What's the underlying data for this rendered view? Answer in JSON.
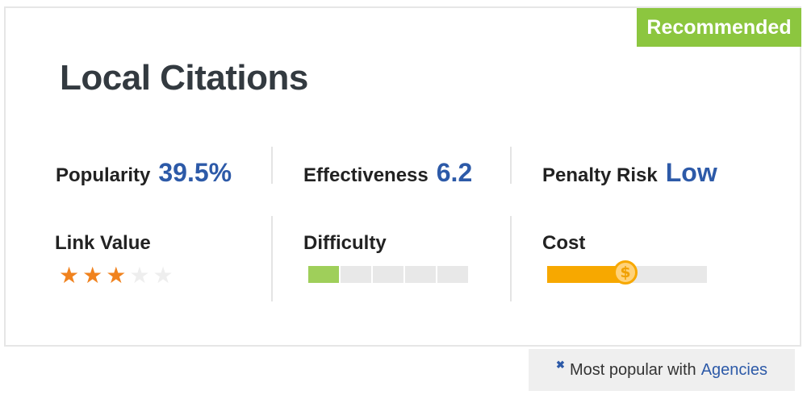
{
  "badge": "Recommended",
  "title": "Local Citations",
  "metrics": [
    {
      "label": "Popularity",
      "value": "39.5%"
    },
    {
      "label": "Effectiveness",
      "value": "6.2"
    },
    {
      "label": "Penalty Risk",
      "value": "Low"
    }
  ],
  "link_value": {
    "label": "Link Value",
    "rating": 3,
    "max": 5
  },
  "difficulty": {
    "label": "Difficulty",
    "level": 1,
    "max": 5
  },
  "cost": {
    "label": "Cost",
    "symbol": "$",
    "level_fraction": 0.49
  },
  "footer": {
    "prefix": "Most popular with",
    "highlight": "Agencies"
  },
  "colors": {
    "badge": "#8cc63f",
    "value": "#2d5aa8",
    "star_on": "#f0821e",
    "star_off": "#eeeeee",
    "difficulty_fill": "#9fcf5a",
    "cost_fill": "#f7a800"
  }
}
